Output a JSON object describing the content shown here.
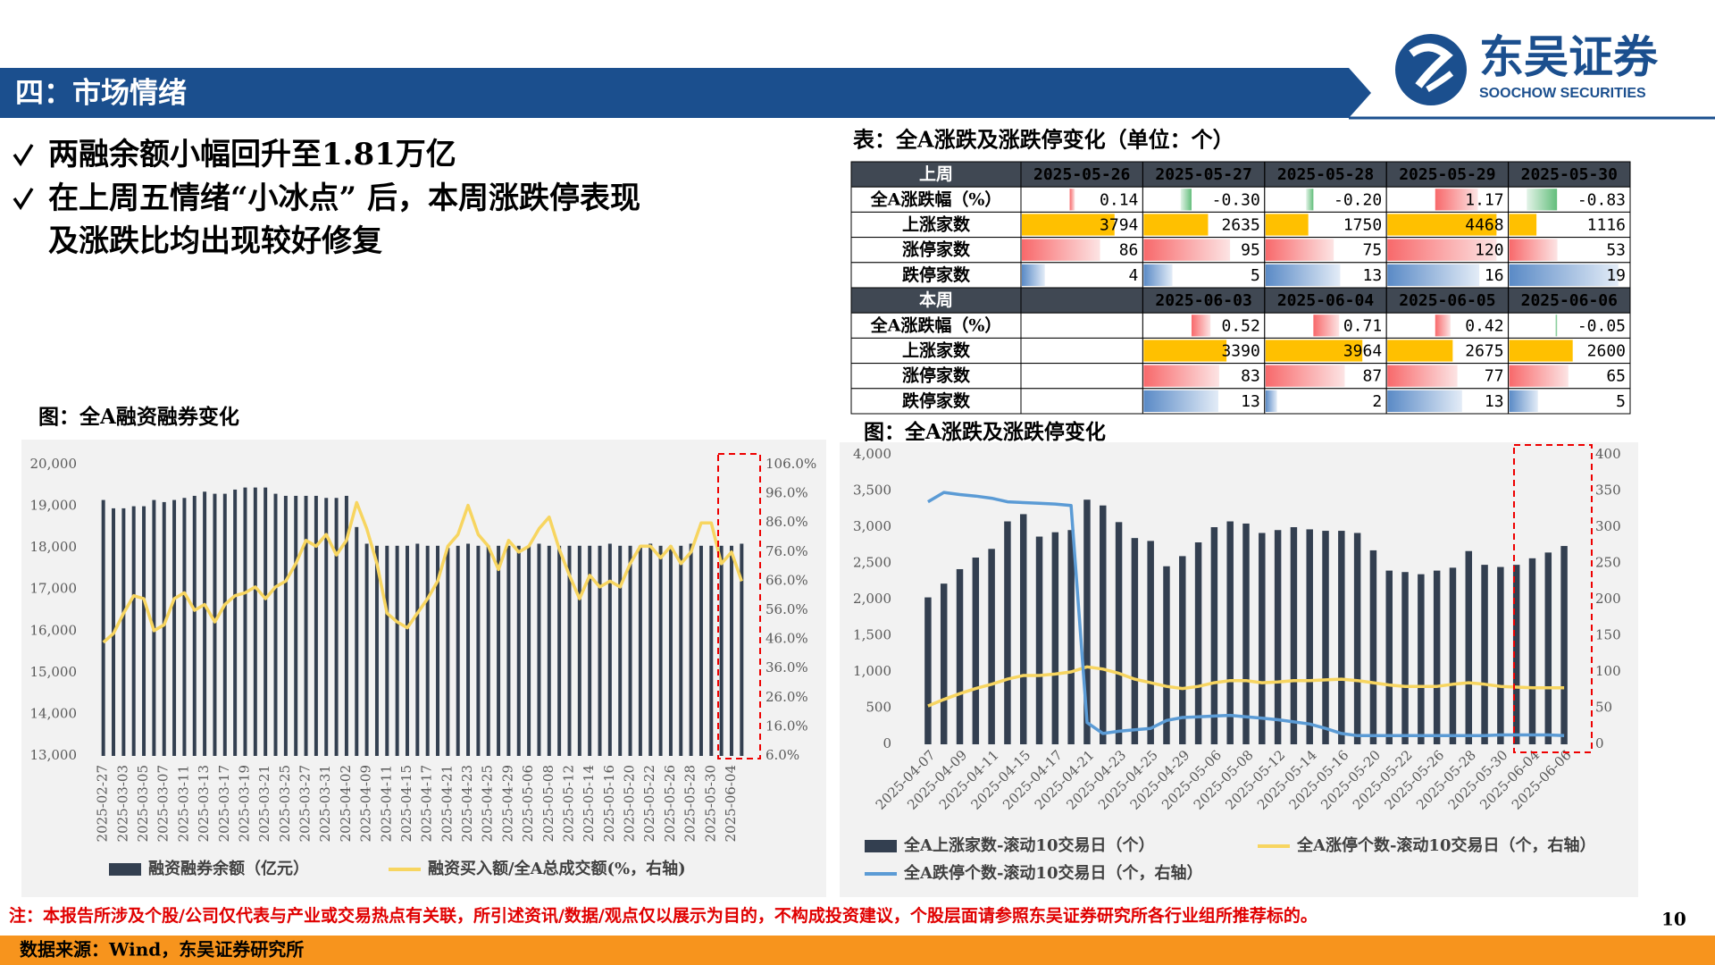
{
  "header": {
    "title": "四：市场情绪",
    "logo_cn": "东吴证券",
    "logo_en": "SOOCHOW SECURITIES"
  },
  "bullets": [
    {
      "lines": [
        "两融余额小幅回升至1.81万亿"
      ]
    },
    {
      "lines": [
        "在上周五情绪“小冰点” 后，本周涨跌停表现",
        "及涨跌比均出现较好修复"
      ]
    }
  ],
  "table": {
    "title": "表：全A涨跌及涨跌停变化（单位：个）",
    "sections": [
      {
        "header": [
          "上周",
          "2025-05-26",
          "2025-05-27",
          "2025-05-28",
          "2025-05-29",
          "2025-05-30"
        ],
        "rows": [
          [
            "全A涨跌幅（%）",
            "0.14",
            "-0.30",
            "-0.20",
            "1.17",
            "-0.83"
          ],
          [
            "上涨家数",
            "3794",
            "2635",
            "1750",
            "4468",
            "1116"
          ],
          [
            "涨停家数",
            "86",
            "95",
            "75",
            "120",
            "53"
          ],
          [
            "跌停家数",
            "4",
            "5",
            "13",
            "16",
            "19"
          ]
        ]
      },
      {
        "header": [
          "本周",
          null,
          "2025-06-03",
          "2025-06-04",
          "2025-06-05",
          "2025-06-06"
        ],
        "rows": [
          [
            "全A涨跌幅（%）",
            null,
            "0.52",
            "0.71",
            "0.42",
            "-0.05"
          ],
          [
            "上涨家数",
            null,
            "3390",
            "3964",
            "2675",
            "2600"
          ],
          [
            "涨停家数",
            null,
            "83",
            "87",
            "77",
            "65"
          ],
          [
            "跌停家数",
            null,
            "13",
            "2",
            "13",
            "5"
          ]
        ]
      }
    ]
  },
  "chart_data": [
    {
      "type": "combo",
      "title": "图：全A融资融券变化",
      "categories": [
        "2025-02-27",
        null,
        "2025-03-03",
        null,
        "2025-03-05",
        null,
        "2025-03-07",
        null,
        "2025-03-11",
        null,
        "2025-03-13",
        null,
        "2025-03-17",
        null,
        "2025-03-19",
        null,
        "2025-03-21",
        null,
        "2025-03-25",
        null,
        "2025-03-27",
        null,
        "2025-03-31",
        null,
        "2025-04-02",
        null,
        "2025-04-09",
        null,
        "2025-04-11",
        null,
        "2025-04-15",
        null,
        "2025-04-17",
        null,
        "2025-04-21",
        null,
        "2025-04-23",
        null,
        "2025-04-25",
        null,
        "2025-04-29",
        null,
        "2025-05-06",
        null,
        "2025-05-08",
        null,
        "2025-05-12",
        null,
        "2025-05-14",
        null,
        "2025-05-16",
        null,
        "2025-05-20",
        null,
        "2025-05-22",
        null,
        "2025-05-26",
        null,
        "2025-05-28",
        null,
        "2025-05-30",
        null,
        "2025-06-04",
        null
      ],
      "series": [
        {
          "name": "融资融券余额（亿元）",
          "type": "bar",
          "color": "#333F50",
          "values": [
            19150,
            18950,
            18950,
            19000,
            19000,
            19150,
            19100,
            19150,
            19200,
            19250,
            19350,
            19300,
            19300,
            19400,
            19450,
            19450,
            19450,
            19300,
            19250,
            19250,
            19250,
            19250,
            19200,
            19200,
            19250,
            18500,
            18100,
            18050,
            18050,
            18050,
            18050,
            18100,
            18050,
            18050,
            18000,
            18050,
            18100,
            18050,
            18050,
            18050,
            18050,
            18050,
            18050,
            18100,
            18050,
            18050,
            18050,
            18050,
            18050,
            18050,
            18100,
            18050,
            18050,
            18050,
            18100,
            18050,
            18050,
            18050,
            18100,
            18050,
            18050,
            18050,
            18050,
            18100
          ]
        },
        {
          "name": "融资买入额/全A总成交额(%，右轴)",
          "type": "line",
          "axis": "y2",
          "color": "#F7D560",
          "values": [
            45,
            48,
            55,
            61,
            60,
            49,
            51,
            60,
            62,
            56,
            58,
            52,
            58,
            61,
            62,
            64,
            60,
            64,
            66,
            72,
            80,
            78,
            82,
            75,
            80,
            93,
            84,
            72,
            55,
            52,
            50,
            55,
            60,
            66,
            78,
            82,
            92,
            82,
            78,
            70,
            80,
            76,
            78,
            84,
            88,
            77,
            68,
            60,
            68,
            64,
            66,
            64,
            72,
            78,
            78,
            74,
            78,
            72,
            76,
            86,
            86,
            72,
            76,
            66
          ]
        }
      ],
      "ylim": [
        13000,
        20000
      ],
      "yticks": [
        {
          "value": 13000,
          "label": "13,000"
        },
        {
          "value": 14000,
          "label": "14,000"
        },
        {
          "value": 15000,
          "label": "15,000"
        },
        {
          "value": 16000,
          "label": "16,000"
        },
        {
          "value": 17000,
          "label": "17,000"
        },
        {
          "value": 18000,
          "label": "18,000"
        },
        {
          "value": 19000,
          "label": "19,000"
        },
        {
          "value": 20000,
          "label": "20,000"
        }
      ],
      "y2lim": [
        6,
        106
      ],
      "y2ticks": [
        {
          "value": 6,
          "label": "6.0%"
        },
        {
          "value": 16,
          "label": "16.0%"
        },
        {
          "value": 26,
          "label": "26.0%"
        },
        {
          "value": 36,
          "label": "36.0%"
        },
        {
          "value": 46,
          "label": "46.0%"
        },
        {
          "value": 56,
          "label": "56.0%"
        },
        {
          "value": 66,
          "label": "66.0%"
        },
        {
          "value": 76,
          "label": "76.0%"
        },
        {
          "value": 86,
          "label": "86.0%"
        },
        {
          "value": 96,
          "label": "96.0%"
        },
        {
          "value": 106,
          "label": "106.0%"
        }
      ]
    },
    {
      "type": "combo",
      "title": "图：全A涨跌及涨跌停变化",
      "categories": [
        "2025-04-07",
        null,
        "2025-04-09",
        null,
        "2025-04-11",
        null,
        "2025-04-15",
        null,
        "2025-04-17",
        null,
        "2025-04-21",
        null,
        "2025-04-23",
        null,
        "2025-04-25",
        null,
        "2025-04-29",
        null,
        "2025-05-06",
        null,
        "2025-05-08",
        null,
        "2025-05-12",
        null,
        "2025-05-14",
        null,
        "2025-05-16",
        null,
        "2025-05-20",
        null,
        "2025-05-22",
        null,
        "2025-05-26",
        null,
        "2025-05-28",
        null,
        "2025-05-30",
        null,
        "2025-06-04",
        null,
        "2025-06-06"
      ],
      "series": [
        {
          "name": "全A上涨家数-滚动10交易日（个）",
          "type": "bar",
          "color": "#333F50",
          "values": [
            2030,
            2220,
            2420,
            2580,
            2700,
            3080,
            3180,
            2870,
            2930,
            2960,
            3380,
            3300,
            3070,
            2850,
            2810,
            2460,
            2600,
            2790,
            3000,
            3080,
            3050,
            2920,
            2960,
            3000,
            2970,
            2950,
            2950,
            2920,
            2680,
            2400,
            2380,
            2350,
            2400,
            2440,
            2670,
            2480,
            2450,
            2480,
            2570,
            2650,
            2740
          ]
        },
        {
          "name": "全A涨停个数-滚动10交易日（个，右轴）",
          "type": "line",
          "axis": "y2",
          "color": "#F7D560",
          "values": [
            53,
            62,
            70,
            77,
            83,
            90,
            95,
            95,
            97,
            100,
            107,
            104,
            98,
            90,
            85,
            80,
            77,
            80,
            85,
            88,
            88,
            85,
            86,
            88,
            88,
            89,
            90,
            88,
            85,
            82,
            80,
            80,
            80,
            83,
            85,
            83,
            80,
            79,
            78,
            78,
            78
          ]
        },
        {
          "name": "全A跌停个数-滚动10交易日（个，右轴）",
          "type": "line",
          "axis": "y2",
          "color": "#5B9BD5",
          "values": [
            335,
            348,
            345,
            343,
            340,
            335,
            334,
            333,
            332,
            330,
            30,
            15,
            18,
            20,
            22,
            33,
            37,
            38,
            39,
            40,
            38,
            36,
            34,
            31,
            28,
            22,
            15,
            12,
            12,
            12,
            12,
            12,
            12,
            12,
            12,
            12,
            13,
            13,
            13,
            13,
            12
          ]
        }
      ],
      "ylim": [
        0,
        4000
      ],
      "yticks": [
        0,
        500,
        {
          "value": 1000,
          "label": "1,000"
        },
        {
          "value": 1500,
          "label": "1,500"
        },
        {
          "value": 2000,
          "label": "2,000"
        },
        {
          "value": 2500,
          "label": "2,500"
        },
        {
          "value": 3000,
          "label": "3,000"
        },
        {
          "value": 3500,
          "label": "3,500"
        },
        {
          "value": 4000,
          "label": "4,000"
        }
      ],
      "y2lim": [
        0,
        400
      ],
      "y2ticks": [
        0,
        50,
        100,
        150,
        200,
        250,
        300,
        350,
        400
      ]
    }
  ],
  "footer": {
    "note": "注：本报告所涉及个股/公司仅代表与产业或交易热点有关联，所引述资讯/数据/观点仅以展示为目的，不构成投资建议，个股层面请参照东吴证券研究所各行业组所推荐标的。",
    "page": 10,
    "source": "数据来源：Wind，东吴证券研究所"
  }
}
